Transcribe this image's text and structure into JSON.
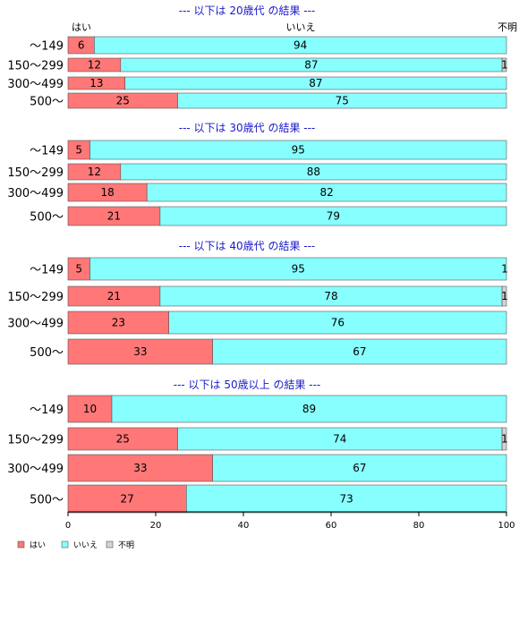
{
  "chart_data": {
    "type": "bar",
    "orientation": "horizontal",
    "stacked": true,
    "series_names": [
      "はい",
      "いいえ",
      "不明"
    ],
    "colors": {
      "yes": "#ff7777",
      "no": "#88ffff",
      "unknown": "#d3d3d3",
      "title": "#1a1acc"
    },
    "xlim": [
      0,
      100
    ],
    "xticks": [
      0,
      20,
      40,
      60,
      80,
      100
    ],
    "legend_position": "bottom-left",
    "groups": [
      {
        "title": "--- 以下は 20歳代 の結果 ---",
        "rows": [
          {
            "label": "～149",
            "yes": 6,
            "no": 94,
            "unknown": 0
          },
          {
            "label": "150～299",
            "yes": 12,
            "no": 87,
            "unknown": 1
          },
          {
            "label": "300～499",
            "yes": 13,
            "no": 87,
            "unknown": 0
          },
          {
            "label": "500～",
            "yes": 25,
            "no": 75,
            "unknown": 0
          }
        ]
      },
      {
        "title": "--- 以下は 30歳代 の結果 ---",
        "rows": [
          {
            "label": "～149",
            "yes": 5,
            "no": 95,
            "unknown": 0
          },
          {
            "label": "150～299",
            "yes": 12,
            "no": 88,
            "unknown": 0
          },
          {
            "label": "300～499",
            "yes": 18,
            "no": 82,
            "unknown": 0
          },
          {
            "label": "500～",
            "yes": 21,
            "no": 79,
            "unknown": 0
          }
        ]
      },
      {
        "title": "--- 以下は 40歳代 の結果 ---",
        "rows": [
          {
            "label": "～149",
            "yes": 5,
            "no": 95,
            "unknown": 1
          },
          {
            "label": "150～299",
            "yes": 21,
            "no": 78,
            "unknown": 1
          },
          {
            "label": "300～499",
            "yes": 23,
            "no": 76,
            "unknown": 0
          },
          {
            "label": "500～",
            "yes": 33,
            "no": 67,
            "unknown": 0
          }
        ]
      },
      {
        "title": "--- 以下は 50歳以上 の結果 ---",
        "rows": [
          {
            "label": "～149",
            "yes": 10,
            "no": 89,
            "unknown": 0
          },
          {
            "label": "150～299",
            "yes": 25,
            "no": 74,
            "unknown": 1
          },
          {
            "label": "300～499",
            "yes": 33,
            "no": 67,
            "unknown": 0
          },
          {
            "label": "500～",
            "yes": 27,
            "no": 73,
            "unknown": 0
          }
        ]
      }
    ]
  }
}
